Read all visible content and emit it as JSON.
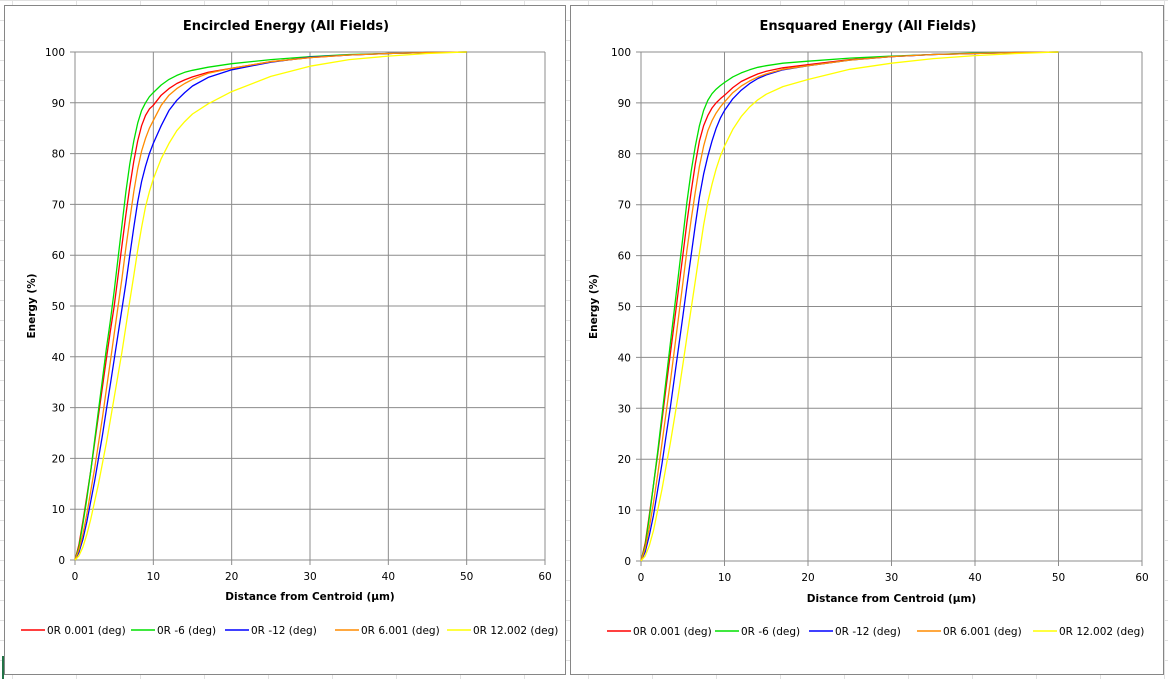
{
  "colors": {
    "grid": "#8c8c8c",
    "series": [
      "#ff0000",
      "#00e000",
      "#0000ff",
      "#ff8c00",
      "#ffff00"
    ]
  },
  "chart_data": [
    {
      "type": "line",
      "title": "Encircled Energy (All Fields)",
      "xlabel": "Distance from Centroid (µm)",
      "ylabel": "Energy (%)",
      "xlim": [
        0,
        60
      ],
      "ylim": [
        0,
        100
      ],
      "xticks": [
        "0",
        "10",
        "20",
        "30",
        "40",
        "50",
        "60"
      ],
      "yticks": [
        "0",
        "10",
        "20",
        "30",
        "40",
        "50",
        "60",
        "70",
        "80",
        "90",
        "100"
      ],
      "grid": true,
      "legend_position": "bottom",
      "x": [
        0,
        0.5,
        1,
        1.5,
        2,
        2.5,
        3,
        3.5,
        4,
        4.5,
        5,
        5.5,
        6,
        6.5,
        7,
        7.5,
        8,
        8.5,
        9,
        9.5,
        10,
        11,
        12,
        13,
        14,
        15,
        17,
        20,
        25,
        30,
        35,
        40,
        45,
        50
      ],
      "series": [
        {
          "name": "0R 0.001 (deg)",
          "values": [
            0,
            3,
            7.5,
            12.5,
            17.5,
            23,
            28.5,
            34,
            39.5,
            45,
            50,
            56,
            62,
            68,
            73.5,
            78.5,
            82.5,
            85.5,
            87.5,
            88.8,
            89.5,
            91.5,
            92.8,
            93.8,
            94.5,
            95.1,
            96,
            96.8,
            98.1,
            98.9,
            99.4,
            99.7,
            99.9,
            100
          ]
        },
        {
          "name": "0R -6 (deg)",
          "values": [
            0,
            2.5,
            7,
            12,
            17.5,
            23.5,
            29.5,
            35.5,
            41.5,
            47,
            53,
            59.5,
            66,
            72.5,
            78,
            82.5,
            86,
            88.5,
            90,
            91.2,
            92,
            93.5,
            94.6,
            95.4,
            96,
            96.4,
            97,
            97.7,
            98.5,
            99.1,
            99.5,
            99.7,
            99.9,
            100
          ]
        },
        {
          "name": "0R -12 (deg)",
          "values": [
            0,
            1.5,
            4,
            7.5,
            11.5,
            15.5,
            20,
            24.5,
            29.5,
            34.5,
            39.5,
            44.5,
            49.5,
            54.5,
            60,
            65.5,
            70.5,
            74.5,
            77.5,
            80,
            82,
            85.5,
            88.5,
            90.5,
            92,
            93.3,
            95,
            96.5,
            98,
            99,
            99.4,
            99.7,
            99.9,
            100
          ]
        },
        {
          "name": "0R 6.001 (deg)",
          "values": [
            0,
            2,
            5,
            9,
            13.5,
            18,
            23,
            28,
            33.5,
            39,
            44.5,
            50,
            55.5,
            61.5,
            67,
            72.5,
            77,
            80.5,
            83,
            85,
            86.5,
            89.5,
            91.5,
            92.8,
            93.8,
            94.6,
            95.8,
            96.8,
            98.1,
            98.9,
            99.4,
            99.7,
            99.9,
            100
          ]
        },
        {
          "name": "0R 12.002 (deg)",
          "values": [
            0,
            0.8,
            2.5,
            5,
            8,
            11.5,
            15,
            19,
            23,
            27.5,
            32,
            36.5,
            41,
            46,
            51,
            56,
            61,
            65.5,
            69.5,
            72.5,
            75,
            79,
            82,
            84.5,
            86.3,
            87.8,
            89.8,
            92.2,
            95.2,
            97.2,
            98.5,
            99.2,
            99.7,
            100
          ]
        }
      ]
    },
    {
      "type": "line",
      "title": "Ensquared Energy (All Fields)",
      "xlabel": "Distance from Centroid (µm)",
      "ylabel": "Energy (%)",
      "xlim": [
        0,
        60
      ],
      "ylim": [
        0,
        100
      ],
      "xticks": [
        "0",
        "10",
        "20",
        "30",
        "40",
        "50",
        "60"
      ],
      "yticks": [
        "0",
        "10",
        "20",
        "30",
        "40",
        "50",
        "60",
        "70",
        "80",
        "90",
        "100"
      ],
      "grid": true,
      "legend_position": "bottom",
      "x": [
        0,
        0.5,
        1,
        1.5,
        2,
        2.5,
        3,
        3.5,
        4,
        4.5,
        5,
        5.5,
        6,
        6.5,
        7,
        7.5,
        8,
        8.5,
        9,
        9.5,
        10,
        11,
        12,
        13,
        14,
        15,
        17,
        20,
        25,
        30,
        35,
        40,
        45,
        50
      ],
      "series": [
        {
          "name": "0R 0.001 (deg)",
          "values": [
            0,
            3.5,
            9,
            15,
            21,
            27.5,
            34,
            40.5,
            47,
            53.5,
            60,
            66.5,
            72.5,
            78,
            82.5,
            85.5,
            87.5,
            89,
            90,
            90.8,
            91.5,
            93,
            94.2,
            95,
            95.7,
            96.2,
            96.9,
            97.5,
            98.5,
            99.1,
            99.5,
            99.7,
            99.9,
            100
          ]
        },
        {
          "name": "0R -6 (deg)",
          "values": [
            0,
            3,
            8.5,
            15,
            21.5,
            28.5,
            35.5,
            42.5,
            49.5,
            56.5,
            63.5,
            70.5,
            76.5,
            81.5,
            85.5,
            88.5,
            90.5,
            91.8,
            92.7,
            93.4,
            94,
            95.1,
            95.9,
            96.5,
            97,
            97.3,
            97.8,
            98.2,
            98.8,
            99.2,
            99.5,
            99.8,
            99.9,
            100
          ]
        },
        {
          "name": "0R -12 (deg)",
          "values": [
            0,
            1.8,
            5,
            9,
            14,
            19,
            24.5,
            30,
            36,
            42,
            48,
            54,
            60,
            66,
            71.5,
            76,
            79.5,
            82.5,
            85,
            87,
            88.5,
            90.8,
            92.5,
            93.8,
            94.8,
            95.5,
            96.5,
            97.3,
            98.4,
            99.1,
            99.5,
            99.7,
            99.9,
            100
          ]
        },
        {
          "name": "0R 6.001 (deg)",
          "values": [
            0,
            2.5,
            6.5,
            11.5,
            17,
            23,
            29,
            35,
            41.5,
            48,
            54.5,
            61,
            67,
            72.5,
            77.5,
            81.5,
            84.5,
            86.5,
            88,
            89.2,
            90.2,
            92,
            93.3,
            94.3,
            95.1,
            95.7,
            96.6,
            97.3,
            98.4,
            99.1,
            99.5,
            99.7,
            99.9,
            100
          ]
        },
        {
          "name": "0R 12.002 (deg)",
          "values": [
            0,
            1,
            3,
            6,
            10,
            14,
            18.5,
            23,
            28,
            33,
            38.5,
            44,
            49.5,
            55,
            60.5,
            66,
            70.5,
            74,
            77,
            79.5,
            81.5,
            84.8,
            87.3,
            89.2,
            90.6,
            91.7,
            93.2,
            94.6,
            96.6,
            97.8,
            98.7,
            99.3,
            99.7,
            100
          ]
        }
      ]
    }
  ]
}
